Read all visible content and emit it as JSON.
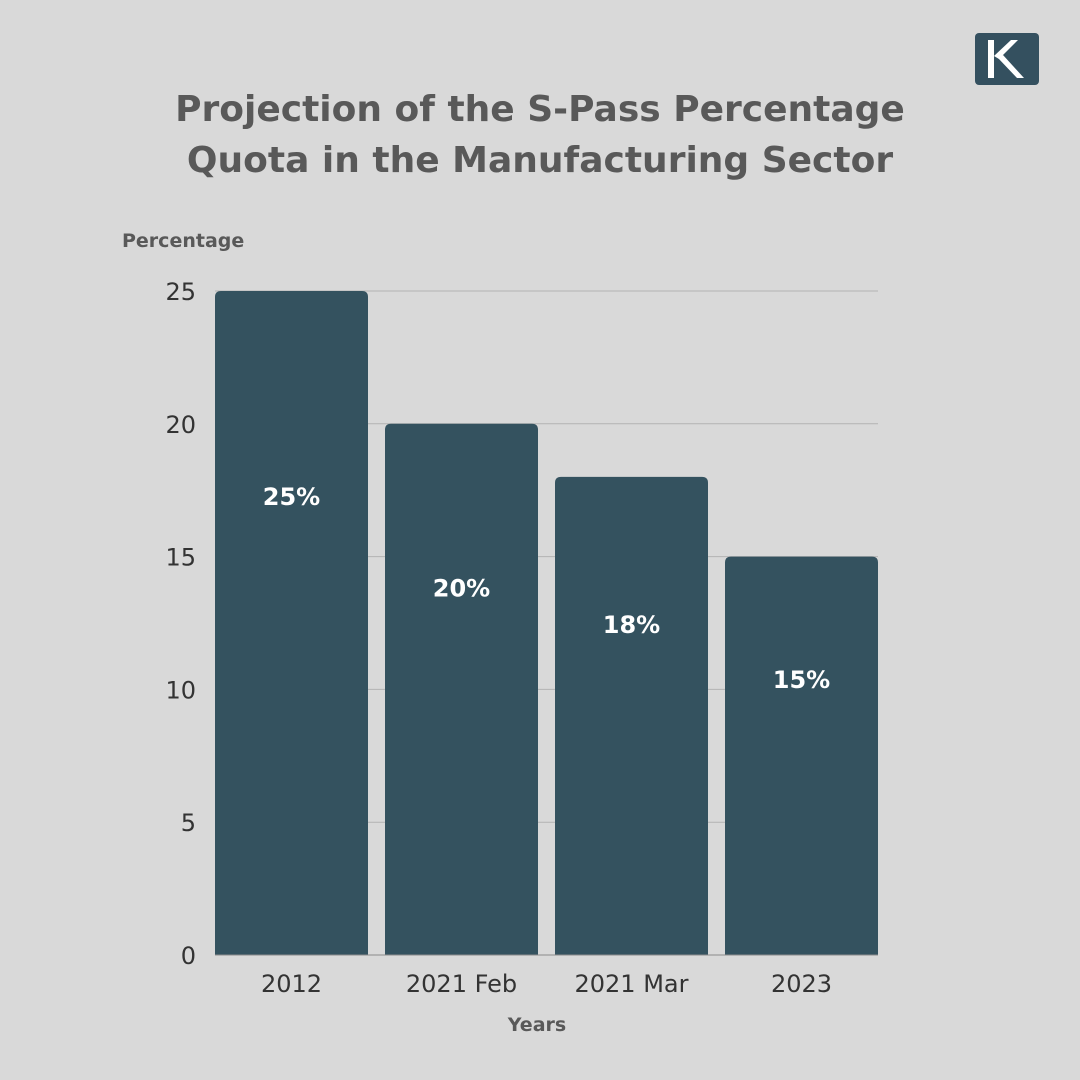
{
  "logo": {
    "letter": "K",
    "color": "#34505f"
  },
  "chart_data": {
    "type": "bar",
    "title": "Projection of the S-Pass Percentage Quota in the Manufacturing Sector",
    "title_lines": [
      "Projection of the S-Pass Percentage",
      "Quota in the Manufacturing Sector"
    ],
    "xlabel": "Years",
    "ylabel": "Percentage",
    "categories": [
      "2012",
      "2021 Feb",
      "2021 Mar",
      "2023"
    ],
    "values": [
      25,
      20,
      18,
      15
    ],
    "data_labels": [
      "25%",
      "20%",
      "18%",
      "15%"
    ],
    "ylim": [
      0,
      25
    ],
    "yticks": [
      0,
      5,
      10,
      15,
      20,
      25
    ],
    "grid": true,
    "bar_color": "#34525f",
    "legend": "none"
  }
}
